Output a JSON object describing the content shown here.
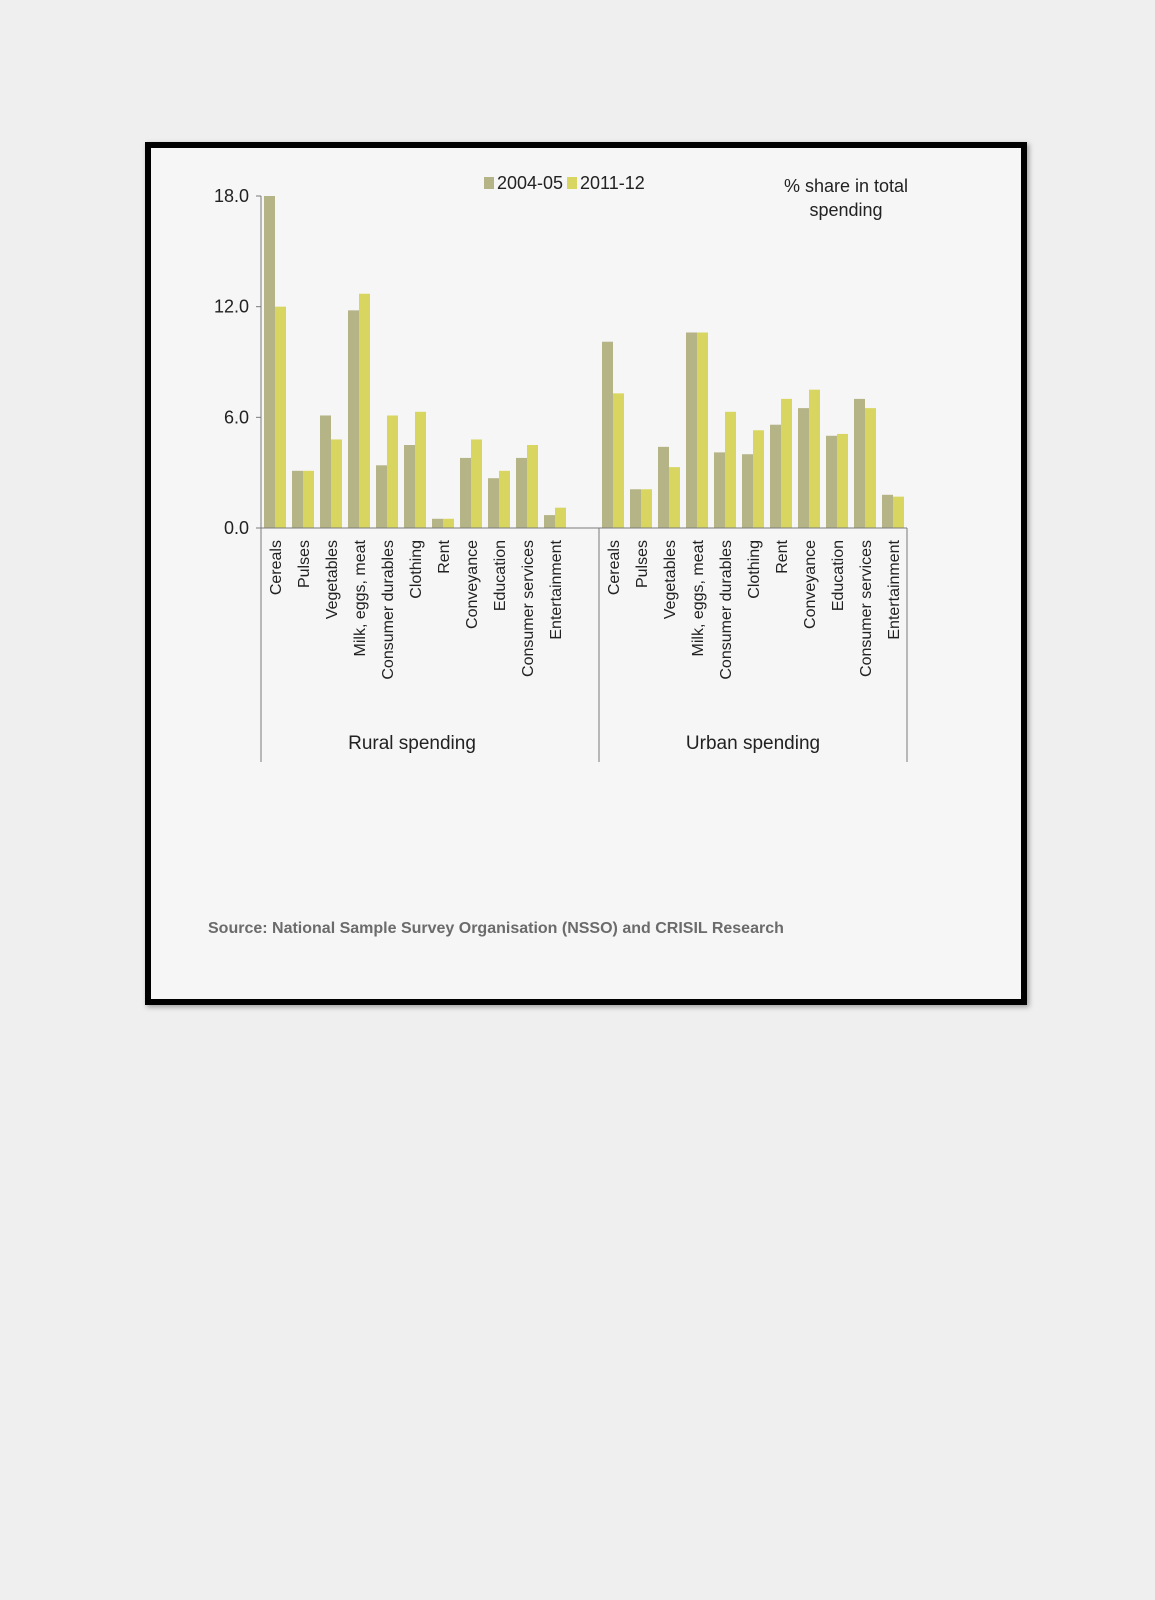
{
  "chart_data": {
    "type": "bar",
    "unit_note_lines": [
      "% share in total",
      "spending"
    ],
    "source": "Source: National Sample Survey Organisation (NSSO) and CRISIL Research",
    "ylim": [
      0,
      18
    ],
    "yticks": [
      "0.0",
      "6.0",
      "12.0",
      "18.0"
    ],
    "ytick_values": [
      0,
      6,
      12,
      18
    ],
    "legend_position": "top-center",
    "grid": false,
    "series": [
      {
        "name": "2004-05",
        "color": "#b5b487"
      },
      {
        "name": "2011-12",
        "color": "#d8d661"
      }
    ],
    "groups": [
      {
        "name": "Rural spending",
        "categories": [
          "Cereals",
          "Pulses",
          "Vegetables",
          "Milk, eggs, meat",
          "Consumer durables",
          "Clothing",
          "Rent",
          "Conveyance",
          "Education",
          "Consumer services",
          "Entertainment"
        ],
        "values_2004_05": [
          18.0,
          3.1,
          6.1,
          11.8,
          3.4,
          4.5,
          0.5,
          3.8,
          2.7,
          3.8,
          0.7
        ],
        "values_2011_12": [
          12.0,
          3.1,
          4.8,
          12.7,
          6.1,
          6.3,
          0.5,
          4.8,
          3.1,
          4.5,
          1.1
        ]
      },
      {
        "name": "Urban spending",
        "categories": [
          "Cereals",
          "Pulses",
          "Vegetables",
          "Milk, eggs, meat",
          "Consumer durables",
          "Clothing",
          "Rent",
          "Conveyance",
          "Education",
          "Consumer services",
          "Entertainment"
        ],
        "values_2004_05": [
          10.1,
          2.1,
          4.4,
          10.6,
          4.1,
          4.0,
          5.6,
          6.5,
          5.0,
          7.0,
          1.8
        ],
        "values_2011_12": [
          7.3,
          2.1,
          3.3,
          10.6,
          6.3,
          5.3,
          7.0,
          7.5,
          5.1,
          6.5,
          1.7
        ]
      }
    ]
  }
}
